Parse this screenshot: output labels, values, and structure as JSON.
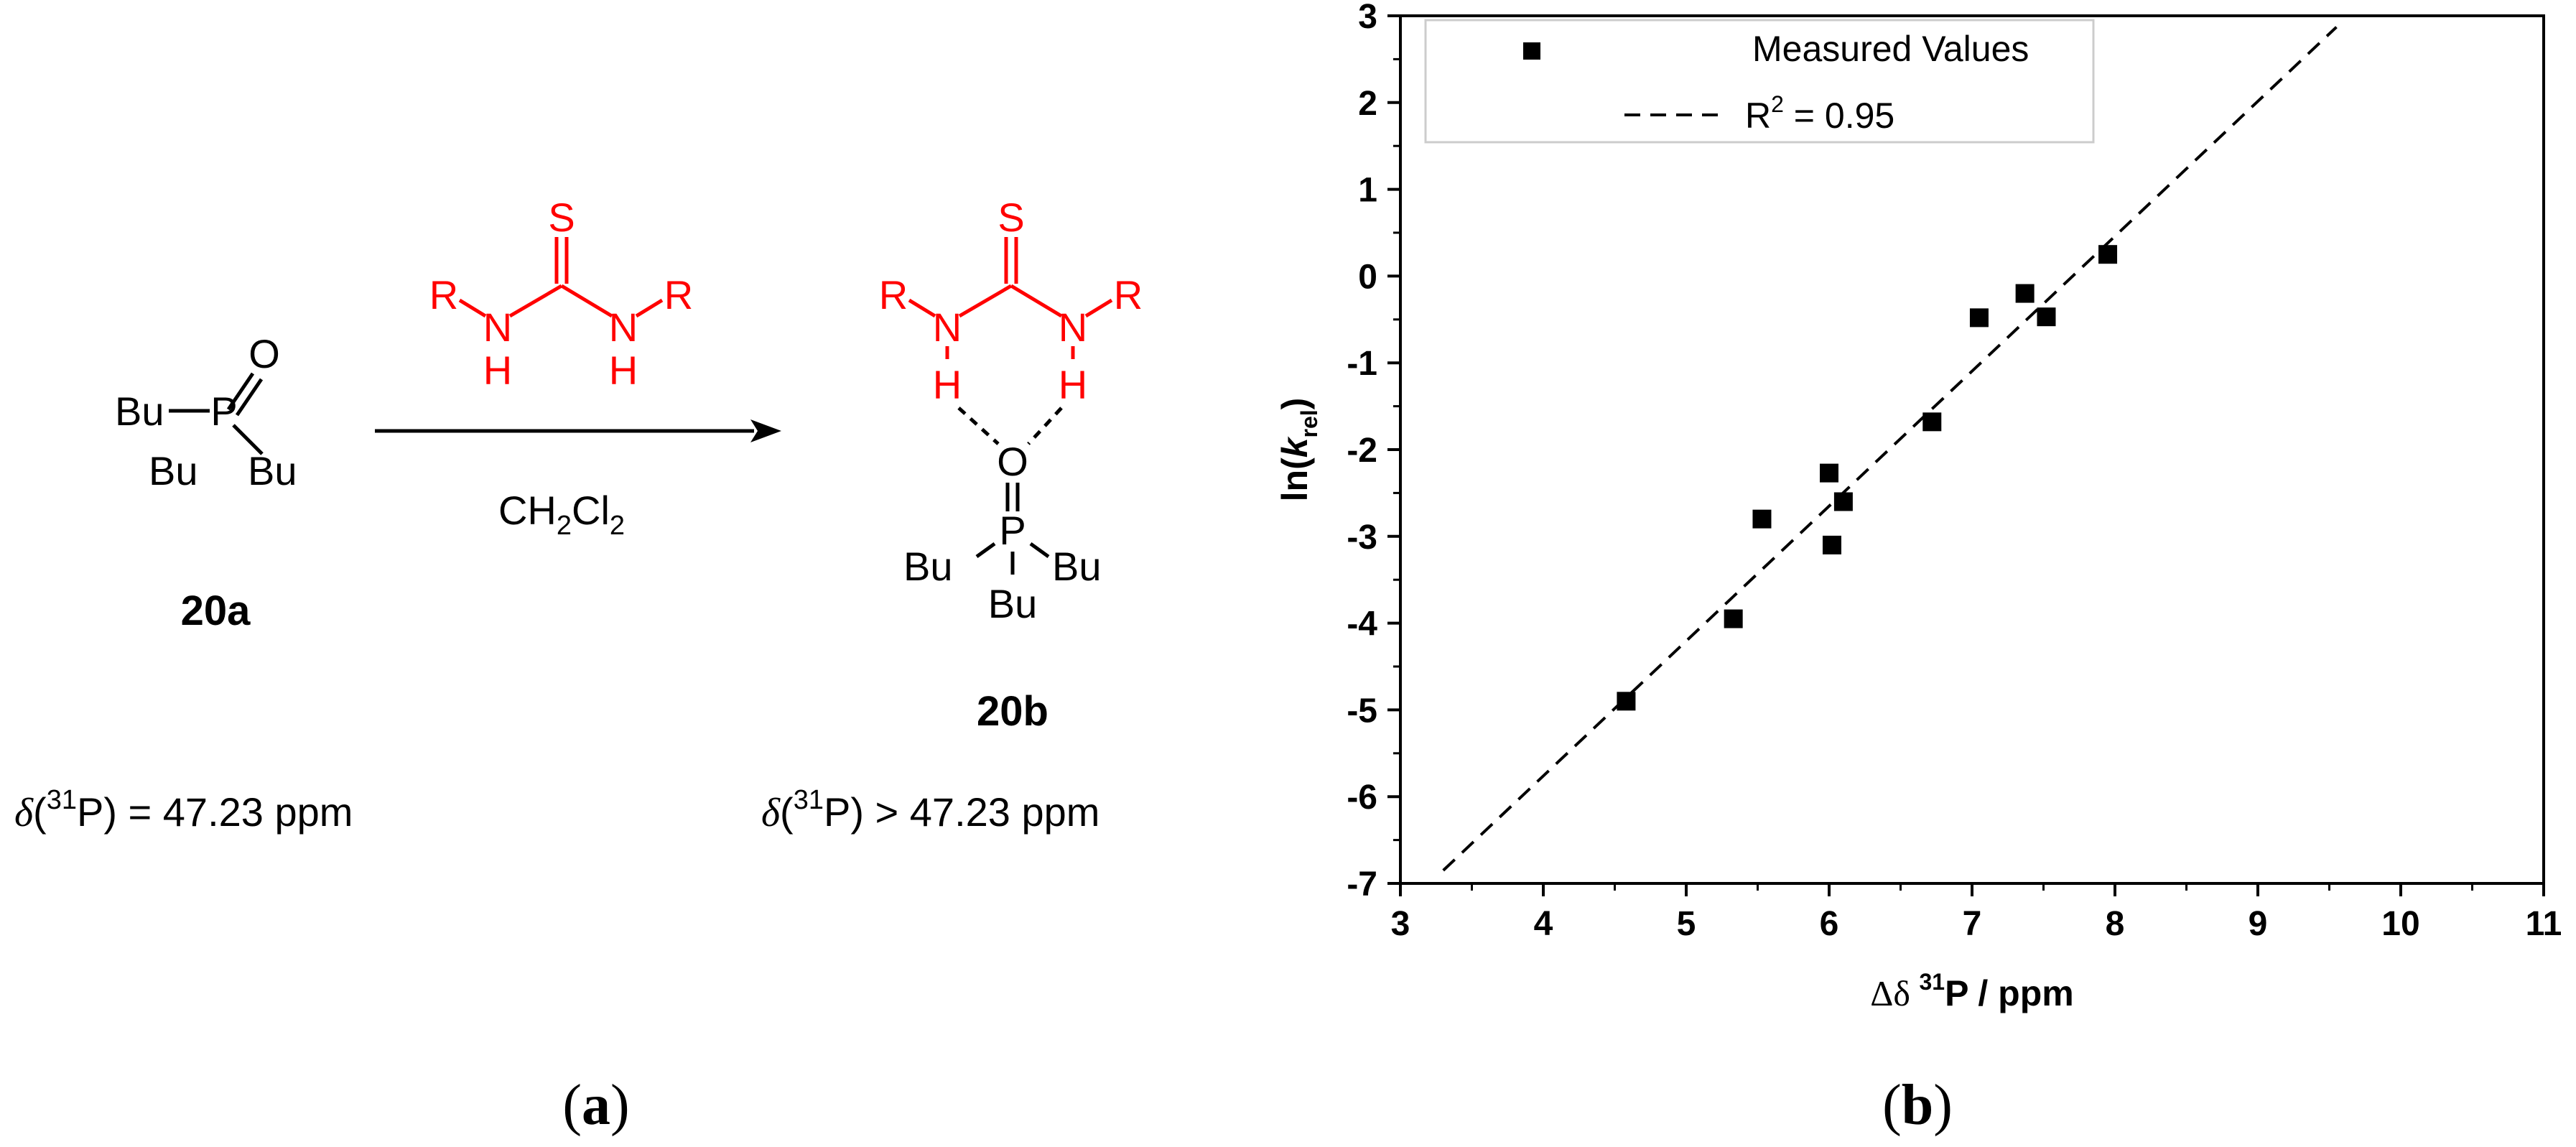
{
  "scheme": {
    "reactant": {
      "label": "20a",
      "atoms": {
        "p": "P",
        "o": "O",
        "bu_left": "Bu",
        "bu_lower_left": "Bu",
        "bu_lower_right": "Bu"
      },
      "shift": {
        "delta": "δ",
        "open": "(",
        "iso": "31",
        "rest": "P) = 47.23 ppm"
      }
    },
    "reagent": {
      "atoms": {
        "s": "S",
        "n1": "N",
        "n2": "N",
        "h1": "H",
        "h2": "H",
        "r1": "R",
        "r2": "R"
      },
      "solvent": {
        "ch": "CH",
        "sub1": "2",
        "cl": "Cl",
        "sub2": "2"
      }
    },
    "product": {
      "label": "20b",
      "atoms": {
        "s": "S",
        "n1": "N",
        "n2": "N",
        "h1": "H",
        "h2": "H",
        "r1": "R",
        "r2": "R",
        "o": "O",
        "p": "P",
        "bu_left": "Bu",
        "bu_right": "Bu",
        "bu_bottom": "Bu"
      },
      "shift": {
        "delta": "δ",
        "open": "(",
        "iso": "31",
        "rest": "P) > 47.23 ppm"
      }
    },
    "panel_label": {
      "open": "(",
      "letter": "a",
      "close": ")"
    },
    "colors": {
      "thiourea": "#ff0000",
      "molecule": "#000000"
    }
  },
  "chart_panel_label": {
    "open": "(",
    "letter": "b",
    "close": ")"
  },
  "chart_data": {
    "type": "scatter",
    "xlabel": {
      "delta": "Δδ ",
      "iso": "31",
      "rest": "P / ppm"
    },
    "ylabel": {
      "pre": "ln(",
      "k": "k",
      "sub": "rel",
      "post": ")"
    },
    "xlim": [
      3,
      11
    ],
    "ylim": [
      -7,
      3
    ],
    "xticks": [
      "3",
      "4",
      "5",
      "6",
      "7",
      "8",
      "9",
      "10",
      "11"
    ],
    "yticks": [
      "-7",
      "-6",
      "-5",
      "-4",
      "-3",
      "-2",
      "-1",
      "0",
      "1",
      "2",
      "3"
    ],
    "series": [
      {
        "name": "Measured Values",
        "marker": "square",
        "color": "#000000",
        "points": [
          [
            4.58,
            -4.9
          ],
          [
            5.33,
            -3.95
          ],
          [
            5.53,
            -2.8
          ],
          [
            6.0,
            -2.27
          ],
          [
            6.02,
            -3.1
          ],
          [
            6.1,
            -2.6
          ],
          [
            6.72,
            -1.68
          ],
          [
            7.05,
            -0.48
          ],
          [
            7.37,
            -0.2
          ],
          [
            7.52,
            -0.47
          ],
          [
            7.95,
            0.25
          ]
        ]
      }
    ],
    "fit_line": {
      "x": [
        3.3,
        9.55
      ],
      "y": [
        -6.85,
        2.87
      ],
      "style": "dashed",
      "color": "#000000",
      "legend": {
        "r": "R",
        "exp": "2",
        "rest": " =  0.95"
      }
    },
    "legend_position": "top-left",
    "grid": false
  }
}
